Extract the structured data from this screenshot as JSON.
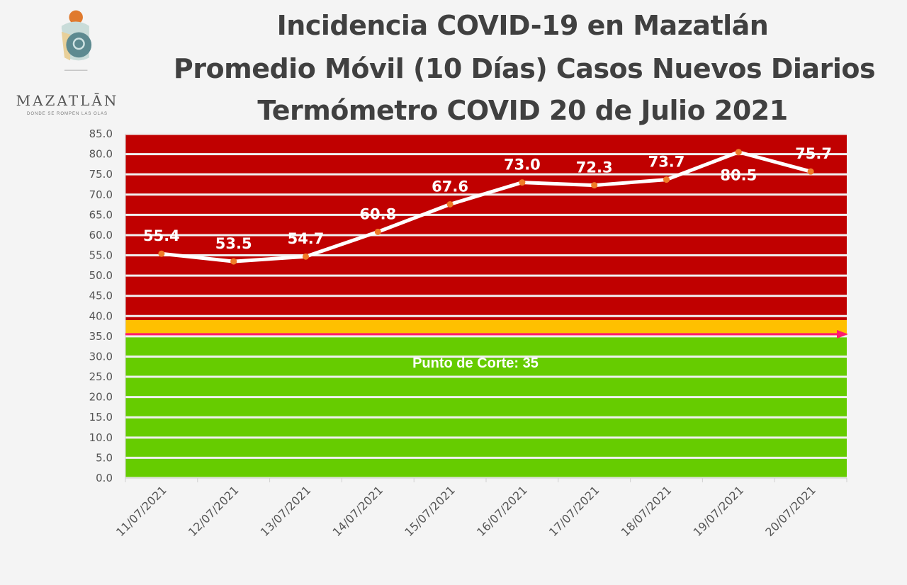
{
  "header": {
    "title_line1": "Incidencia COVID-19 en Mazatlán",
    "title_line2": "Promedio Móvil (10 Días) Casos Nuevos Diarios",
    "title_line3": "Termómetro COVID 20 de Julio 2021"
  },
  "logo": {
    "name": "MAZATLĀN",
    "tagline": "DONDE SE ROMPEN LAS OLAS"
  },
  "chart_data": {
    "type": "line",
    "title": "Incidencia COVID-19 en Mazatlán - Promedio Móvil (10 Días) Casos Nuevos Diarios",
    "categories": [
      "11/07/2021",
      "12/07/2021",
      "13/07/2021",
      "14/07/2021",
      "15/07/2021",
      "16/07/2021",
      "17/07/2021",
      "18/07/2021",
      "19/07/2021",
      "20/07/2021"
    ],
    "series": [
      {
        "name": "Promedio Móvil",
        "values": [
          55.4,
          53.5,
          54.7,
          60.8,
          67.6,
          73.0,
          72.3,
          73.7,
          80.5,
          75.7
        ]
      }
    ],
    "ylim": [
      0,
      85
    ],
    "yticks": [
      0,
      5,
      10,
      15,
      20,
      25,
      30,
      35,
      40,
      45,
      50,
      55,
      60,
      65,
      70,
      75,
      80,
      85
    ],
    "grid": true,
    "bands": [
      {
        "from": 39,
        "to": 85,
        "color": "#c00000"
      },
      {
        "from": 35,
        "to": 39,
        "color": "#ffc000"
      },
      {
        "from": 0,
        "to": 35,
        "color": "#66cc00"
      }
    ],
    "threshold": {
      "value": 35,
      "label": "Punto de Corte: 35",
      "color": "#ff1a6e"
    },
    "line_color": "#ffffff",
    "marker_color": "#f07c28"
  }
}
